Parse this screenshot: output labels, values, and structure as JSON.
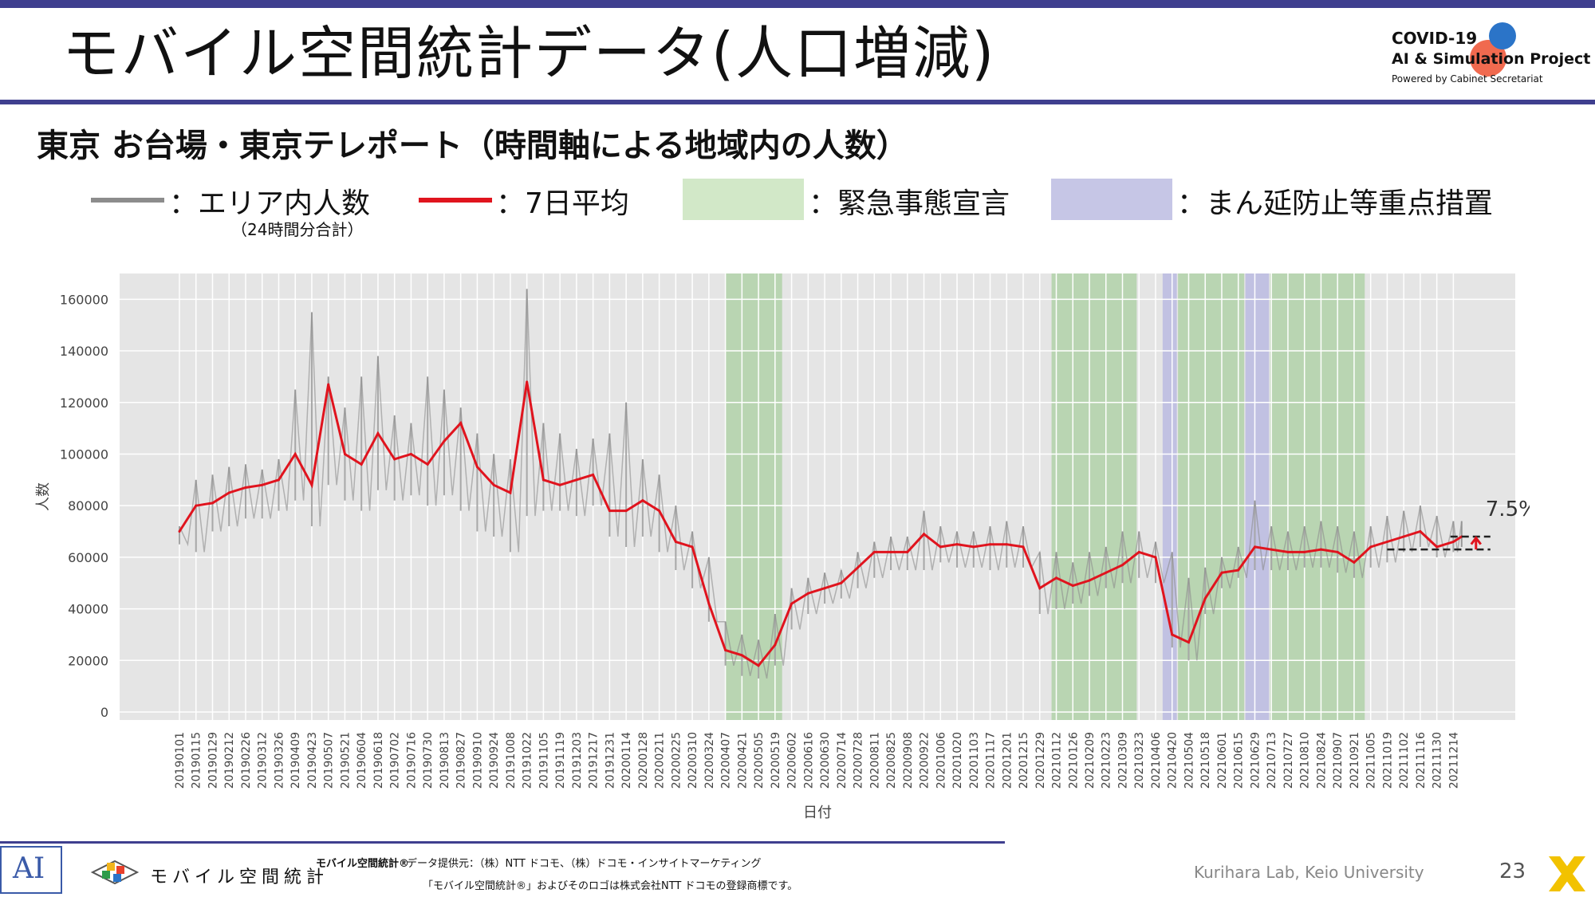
{
  "slide": {
    "title": "モバイル空間統計データ(人口増減)",
    "subtitle": "東京 お台場・東京テレポート（時間軸による地域内の人数）",
    "page_number": "23",
    "lab": "Kurihara Lab, Keio University"
  },
  "logo": {
    "line1": "COVID-19",
    "line2": "AI & Simulation Project",
    "line3": "Powered by Cabinet Secretariat"
  },
  "legend": {
    "area_label": "：エリア内人数",
    "area_sub": "（24時間分合計）",
    "avg_label": "：7日平均",
    "emergency_label": "：緊急事態宣言",
    "priority_label": "：まん延防止等重点措置",
    "colors": {
      "area": "#8c8c8c",
      "avg": "#e0141e",
      "emergency": "#d2e8c8",
      "priority": "#c6c6e6"
    }
  },
  "footer": {
    "brand": "モバイル空間統計",
    "registered": "モバイル空間統計®",
    "provider": "データ提供元：（株）NTT ドコモ、（株）ドコモ・インサイトマーケティング",
    "trademark": "「モバイル空間統計®」およびそのロゴは株式会社NTT ドコモの登録商標です。"
  },
  "chart_data": {
    "type": "line",
    "xlabel": "日付",
    "ylabel": "人数",
    "ylim": [
      0,
      170000
    ],
    "yticks": [
      0,
      20000,
      40000,
      60000,
      80000,
      100000,
      120000,
      140000,
      160000
    ],
    "grid": true,
    "x_ticks": [
      "20190101",
      "20190115",
      "20190129",
      "20190212",
      "20190226",
      "20190312",
      "20190326",
      "20190409",
      "20190423",
      "20190507",
      "20190521",
      "20190604",
      "20190618",
      "20190702",
      "20190716",
      "20190730",
      "20190813",
      "20190827",
      "20190910",
      "20190924",
      "20191008",
      "20191022",
      "20191105",
      "20191119",
      "20191203",
      "20191217",
      "20191231",
      "20200114",
      "20200128",
      "20200211",
      "20200225",
      "20200310",
      "20200324",
      "20200407",
      "20200421",
      "20200505",
      "20200519",
      "20200602",
      "20200616",
      "20200630",
      "20200714",
      "20200728",
      "20200811",
      "20200825",
      "20200908",
      "20200922",
      "20201006",
      "20201020",
      "20201103",
      "20201117",
      "20201201",
      "20201215",
      "20201229",
      "20210112",
      "20210126",
      "20210209",
      "20210223",
      "20210309",
      "20210323",
      "20210406",
      "20210420",
      "20210504",
      "20210518",
      "20210601",
      "20210615",
      "20210629",
      "20210713",
      "20210727",
      "20210810",
      "20210824",
      "20210907",
      "20210921",
      "20211005",
      "20211019",
      "20211102",
      "20211116",
      "20211130",
      "20211214"
    ],
    "series": [
      {
        "name": "エリア内人数",
        "color": "#8c8c8c",
        "note": "daily values, sampled every 14 days (low / high envelope)",
        "x": [
          "20190101",
          "20190115",
          "20190129",
          "20190212",
          "20190226",
          "20190312",
          "20190326",
          "20190409",
          "20190423",
          "20190507",
          "20190521",
          "20190604",
          "20190618",
          "20190702",
          "20190716",
          "20190730",
          "20190813",
          "20190827",
          "20190910",
          "20190924",
          "20191008",
          "20191022",
          "20191105",
          "20191119",
          "20191203",
          "20191217",
          "20191231",
          "20200114",
          "20200128",
          "20200211",
          "20200225",
          "20200310",
          "20200324",
          "20200407",
          "20200421",
          "20200505",
          "20200519",
          "20200602",
          "20200616",
          "20200630",
          "20200714",
          "20200728",
          "20200811",
          "20200825",
          "20200908",
          "20200922",
          "20201006",
          "20201020",
          "20201103",
          "20201117",
          "20201201",
          "20201215",
          "20201229",
          "20210112",
          "20210126",
          "20210209",
          "20210223",
          "20210309",
          "20210323",
          "20210406",
          "20210420",
          "20210504",
          "20210518",
          "20210601",
          "20210615",
          "20210629",
          "20210713",
          "20210727",
          "20210810",
          "20210824",
          "20210907",
          "20210921",
          "20211005",
          "20211019",
          "20211102",
          "20211116",
          "20211130",
          "20211214",
          "20211221"
        ],
        "low": [
          65000,
          62000,
          70000,
          72000,
          75000,
          75000,
          78000,
          82000,
          72000,
          88000,
          82000,
          78000,
          86000,
          82000,
          84000,
          80000,
          84000,
          78000,
          70000,
          68000,
          62000,
          76000,
          78000,
          78000,
          76000,
          80000,
          68000,
          64000,
          68000,
          62000,
          55000,
          48000,
          35000,
          18000,
          14000,
          13000,
          18000,
          32000,
          38000,
          42000,
          44000,
          48000,
          52000,
          55000,
          55000,
          55000,
          58000,
          56000,
          56000,
          55000,
          56000,
          56000,
          38000,
          40000,
          42000,
          45000,
          48000,
          50000,
          52000,
          50000,
          25000,
          20000,
          38000,
          48000,
          52000,
          55000,
          55000,
          55000,
          56000,
          56000,
          54000,
          52000,
          56000,
          58000,
          62000,
          64000,
          60000,
          62000,
          64000
        ],
        "high": [
          72000,
          90000,
          92000,
          95000,
          96000,
          94000,
          98000,
          125000,
          155000,
          130000,
          118000,
          130000,
          138000,
          115000,
          112000,
          130000,
          125000,
          118000,
          108000,
          100000,
          98000,
          164000,
          112000,
          108000,
          102000,
          106000,
          108000,
          120000,
          98000,
          92000,
          80000,
          70000,
          60000,
          35000,
          30000,
          28000,
          38000,
          48000,
          52000,
          54000,
          55000,
          62000,
          66000,
          68000,
          68000,
          78000,
          72000,
          70000,
          70000,
          72000,
          74000,
          72000,
          62000,
          62000,
          58000,
          62000,
          64000,
          70000,
          70000,
          66000,
          62000,
          52000,
          56000,
          60000,
          64000,
          82000,
          72000,
          70000,
          72000,
          74000,
          72000,
          70000,
          72000,
          76000,
          78000,
          80000,
          76000,
          74000,
          74000
        ]
      },
      {
        "name": "7日平均",
        "color": "#e0141e",
        "x": [
          "20190101",
          "20190115",
          "20190129",
          "20190212",
          "20190226",
          "20190312",
          "20190326",
          "20190409",
          "20190423",
          "20190507",
          "20190521",
          "20190604",
          "20190618",
          "20190702",
          "20190716",
          "20190730",
          "20190813",
          "20190827",
          "20190910",
          "20190924",
          "20191008",
          "20191022",
          "20191105",
          "20191119",
          "20191203",
          "20191217",
          "20191231",
          "20200114",
          "20200128",
          "20200211",
          "20200225",
          "20200310",
          "20200324",
          "20200407",
          "20200421",
          "20200505",
          "20200519",
          "20200602",
          "20200616",
          "20200630",
          "20200714",
          "20200728",
          "20200811",
          "20200825",
          "20200908",
          "20200922",
          "20201006",
          "20201020",
          "20201103",
          "20201117",
          "20201201",
          "20201215",
          "20201229",
          "20210112",
          "20210126",
          "20210209",
          "20210223",
          "20210309",
          "20210323",
          "20210406",
          "20210420",
          "20210504",
          "20210518",
          "20210601",
          "20210615",
          "20210629",
          "20210713",
          "20210727",
          "20210810",
          "20210824",
          "20210907",
          "20210921",
          "20211005",
          "20211019",
          "20211102",
          "20211116",
          "20211130",
          "20211214",
          "20211221"
        ],
        "values": [
          70000,
          80000,
          81000,
          85000,
          87000,
          88000,
          90000,
          100000,
          88000,
          127000,
          100000,
          96000,
          108000,
          98000,
          100000,
          96000,
          105000,
          112000,
          95000,
          88000,
          85000,
          128000,
          90000,
          88000,
          90000,
          92000,
          78000,
          78000,
          82000,
          78000,
          66000,
          64000,
          42000,
          24000,
          22000,
          18000,
          26000,
          42000,
          46000,
          48000,
          50000,
          56000,
          62000,
          62000,
          62000,
          69000,
          64000,
          65000,
          64000,
          65000,
          65000,
          64000,
          48000,
          52000,
          49000,
          51000,
          54000,
          57000,
          62000,
          60000,
          30000,
          27000,
          44000,
          54000,
          55000,
          64000,
          63000,
          62000,
          62000,
          63000,
          62000,
          58000,
          64000,
          66000,
          68000,
          70000,
          64000,
          66000,
          68000
        ]
      }
    ],
    "shaded_periods": [
      {
        "type": "緊急事態宣言",
        "start": "20200407",
        "end": "20200525"
      },
      {
        "type": "緊急事態宣言",
        "start": "20210108",
        "end": "20210321"
      },
      {
        "type": "まん延防止等重点措置",
        "start": "20210412",
        "end": "20210424"
      },
      {
        "type": "緊急事態宣言",
        "start": "20210425",
        "end": "20210620"
      },
      {
        "type": "まん延防止等重点措置",
        "start": "20210621",
        "end": "20210711"
      },
      {
        "type": "緊急事態宣言",
        "start": "20210712",
        "end": "20210930"
      }
    ],
    "annotation": {
      "text": "7.5%"
    }
  }
}
